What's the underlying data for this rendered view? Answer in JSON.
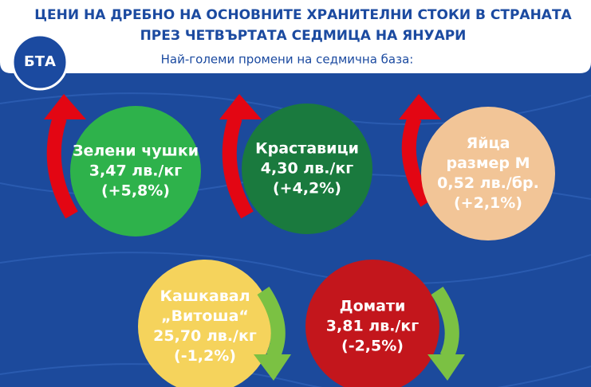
{
  "header": {
    "title": [
      "ЦЕНИ НА ДРЕБНО НА ОСНОВНИТЕ ХРАНИТЕЛНИ СТОКИ В СТРАНАТА",
      "ПРЕЗ ЧЕТВЪРТАТА СЕДМИЦА НА ЯНУАРИ"
    ],
    "subtitle": "Най-големи промени на седмична база:",
    "logo": "БТА"
  },
  "items": [
    {
      "name": [
        "Зелени чушки"
      ],
      "price": "3,47 лв./кг",
      "change": "(+5,8%)"
    },
    {
      "name": [
        "Краставици"
      ],
      "price": "4,30 лв./кг",
      "change": "(+4,2%)"
    },
    {
      "name": [
        "Яйца",
        "размер М"
      ],
      "price": "0,52 лв./бр.",
      "change": "(+2,1%)"
    },
    {
      "name": [
        "Кашкавал",
        "„Витоша“"
      ],
      "price": "25,70 лв./кг",
      "change": "(-1,2%)"
    },
    {
      "name": [
        "Домати"
      ],
      "price": "3,81 лв./кг",
      "change": "(-2,5%)"
    }
  ]
}
